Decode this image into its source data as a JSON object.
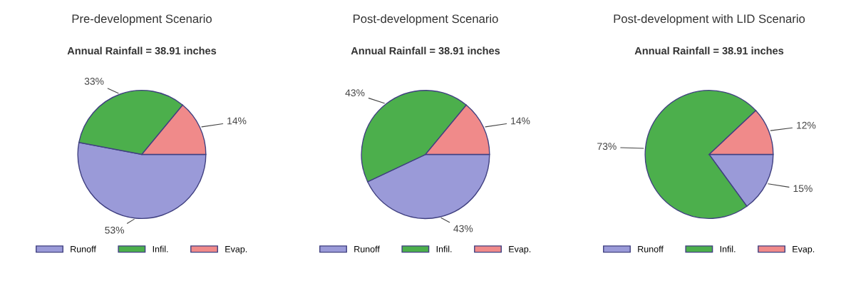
{
  "chart_data": [
    {
      "type": "pie",
      "title": "Pre-development Scenario",
      "subtitle": "Annual Rainfall = 38.91 inches",
      "categories": [
        "Runoff",
        "Infil.",
        "Evap."
      ],
      "values": [
        53,
        33,
        14
      ],
      "value_labels": [
        "53%",
        "33%",
        "14%"
      ],
      "colors": [
        "#9a9ad8",
        "#4caf4c",
        "#f08a8a"
      ],
      "legend": "bottom"
    },
    {
      "type": "pie",
      "title": "Post-development Scenario",
      "subtitle": "Annual Rainfall = 38.91 inches",
      "categories": [
        "Runoff",
        "Infil.",
        "Evap."
      ],
      "values": [
        43,
        43,
        14
      ],
      "value_labels": [
        "43%",
        "43%",
        "14%"
      ],
      "colors": [
        "#9a9ad8",
        "#4caf4c",
        "#f08a8a"
      ],
      "legend": "bottom"
    },
    {
      "type": "pie",
      "title": "Post-development with LID Scenario",
      "subtitle": "Annual Rainfall = 38.91 inches",
      "categories": [
        "Runoff",
        "Infil.",
        "Evap."
      ],
      "values": [
        15,
        73,
        12
      ],
      "value_labels": [
        "15%",
        "73%",
        "12%"
      ],
      "colors": [
        "#9a9ad8",
        "#4caf4c",
        "#f08a8a"
      ],
      "legend": "bottom"
    }
  ]
}
